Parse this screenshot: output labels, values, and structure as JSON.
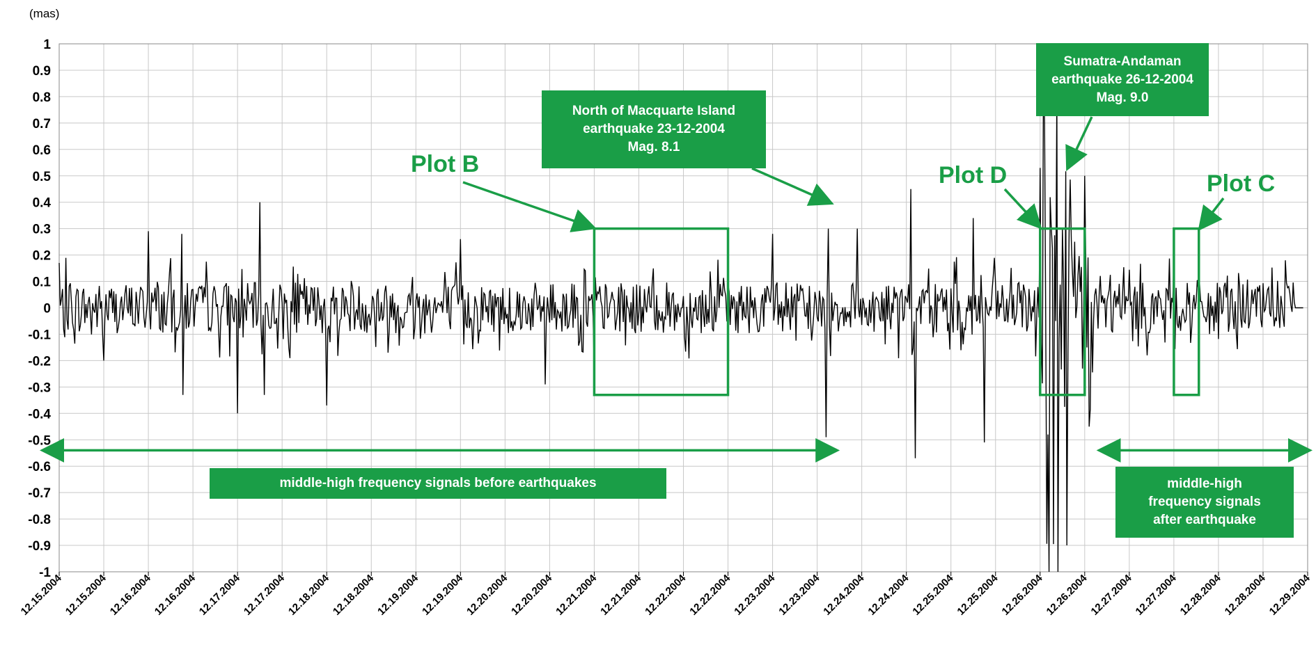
{
  "chart_data": {
    "type": "line",
    "y_unit_label": "(mas)",
    "ylim": [
      -1,
      1
    ],
    "yticks": [
      "1",
      "0.9",
      "0.8",
      "0.7",
      "0.6",
      "0.5",
      "0.4",
      "0.3",
      "0.2",
      "0.1",
      "0",
      "-0.1",
      "-0.2",
      "-0.3",
      "-0.4",
      "-0.5",
      "-0.6",
      "-0.7",
      "-0.8",
      "-0.9",
      "-1"
    ],
    "xticks": [
      "12.15.2004",
      "12.15.2004",
      "12.16.2004",
      "12.16.2004",
      "12.17.2004",
      "12.17.2004",
      "12.18.2004",
      "12.18.2004",
      "12.19.2004",
      "12.19.2004",
      "12.20.2004",
      "12.20.2004",
      "12.21.2004",
      "12.21.2004",
      "12.22.2004",
      "12.22.2004",
      "12.23.2004",
      "12.23.2004",
      "12.24.2004",
      "12.24.2004",
      "12.25.2004",
      "12.25.2004",
      "12.26.2004",
      "12.26.2004",
      "12.27.2004",
      "12.27.2004",
      "12.28.2004",
      "12.28.2004",
      "12.29.2004"
    ],
    "xlim_days": [
      0,
      14
    ],
    "grid": true,
    "series": [
      {
        "x_unit": "days from 12.15.2004 00:00",
        "peaks": [
          {
            "x": 0.0,
            "y": 0.17
          },
          {
            "x": 0.5,
            "y": -0.2
          },
          {
            "x": 1.0,
            "y": 0.29
          },
          {
            "x": 1.37,
            "y": 0.28
          },
          {
            "x": 1.39,
            "y": -0.33
          },
          {
            "x": 2.0,
            "y": -0.4
          },
          {
            "x": 2.25,
            "y": 0.4
          },
          {
            "x": 2.3,
            "y": -0.33
          },
          {
            "x": 3.0,
            "y": -0.37
          },
          {
            "x": 4.5,
            "y": 0.26
          },
          {
            "x": 5.45,
            "y": -0.29
          },
          {
            "x": 6.0,
            "y": -0.25
          },
          {
            "x": 8.0,
            "y": 0.28
          },
          {
            "x": 8.6,
            "y": -0.49
          },
          {
            "x": 8.63,
            "y": 0.3
          },
          {
            "x": 8.95,
            "y": 0.3
          },
          {
            "x": 9.55,
            "y": 0.45
          },
          {
            "x": 9.6,
            "y": -0.57
          },
          {
            "x": 10.25,
            "y": 0.34
          },
          {
            "x": 10.38,
            "y": -0.51
          },
          {
            "x": 11.0,
            "y": 0.53
          },
          {
            "x": 11.05,
            "y": 0.7
          },
          {
            "x": 11.1,
            "y": -1.0
          },
          {
            "x": 11.2,
            "y": -1.0
          },
          {
            "x": 11.3,
            "y": -0.9
          },
          {
            "x": 11.5,
            "y": 0.5
          },
          {
            "x": 11.55,
            "y": -0.45
          },
          {
            "x": 12.5,
            "y": 0.2
          },
          {
            "x": 13.75,
            "y": 0.18
          },
          {
            "x": 13.9,
            "y": 0.0
          }
        ],
        "color": "#000000"
      }
    ],
    "annotations": {
      "box_b": {
        "label": "Plot B",
        "x_range": [
          6.0,
          7.5
        ],
        "y_range": [
          -0.33,
          0.3
        ]
      },
      "box_d": {
        "label": "Plot D",
        "x_range": [
          11.0,
          11.5
        ],
        "y_range": [
          -0.33,
          0.3
        ]
      },
      "box_c": {
        "label": "Plot C",
        "x_range": [
          12.5,
          12.78
        ],
        "y_range": [
          -0.33,
          0.3
        ]
      },
      "quake1": {
        "text": "North of Macquarte Island\nearthquake 23-12-2004\nMag. 8.1",
        "target": {
          "x": 8.67,
          "y": 0.42
        }
      },
      "quake2": {
        "text": "Sumatra-Andaman\nearthquake 26-12-2004\nMag. 9.0",
        "target": {
          "x": 11.3,
          "y": 0.55
        }
      },
      "before": {
        "text": "middle-high frequency signals before earthquakes",
        "x_range": [
          0.0,
          8.7
        ],
        "y": -0.54
      },
      "after": {
        "text": "middle-high\nfrequency signals\nafter earthquake",
        "x_range": [
          11.85,
          14.0
        ],
        "y": -0.54
      }
    },
    "colors": {
      "accent_green": "#1a9e47",
      "signal": "#000000",
      "grid": "#c8c8c8"
    }
  }
}
